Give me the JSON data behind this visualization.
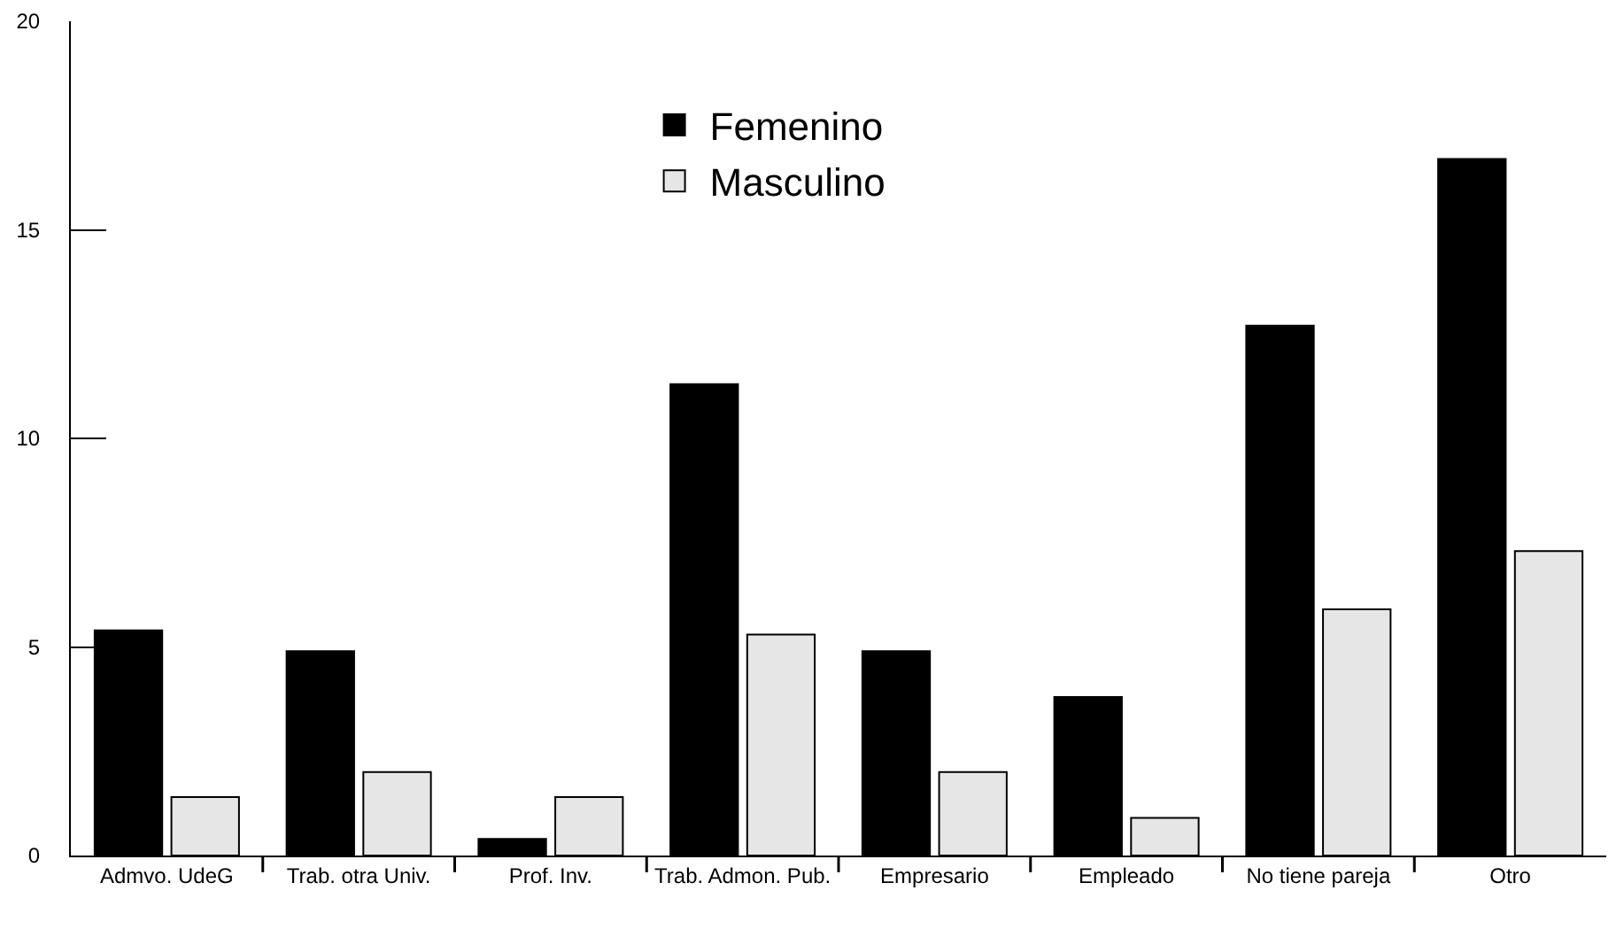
{
  "chart_data": {
    "type": "bar",
    "categories": [
      "Admvo. UdeG",
      "Trab. otra Univ.",
      "Prof. Inv.",
      "Trab. Admon. Pub.",
      "Empresario",
      "Empleado",
      "No tiene pareja",
      "Otro"
    ],
    "series": [
      {
        "name": "Femenino",
        "color": "#000000",
        "values": [
          5.4,
          4.9,
          0.4,
          11.3,
          4.9,
          3.8,
          12.7,
          16.7
        ]
      },
      {
        "name": "Masculino",
        "color": "#e6e6e6",
        "values": [
          1.4,
          2.0,
          1.4,
          5.3,
          2.0,
          0.9,
          5.9,
          7.3
        ]
      }
    ],
    "ylim": [
      0,
      20
    ],
    "yticks": [
      0,
      5,
      10,
      15,
      20
    ],
    "grid": false,
    "legend": "top"
  }
}
